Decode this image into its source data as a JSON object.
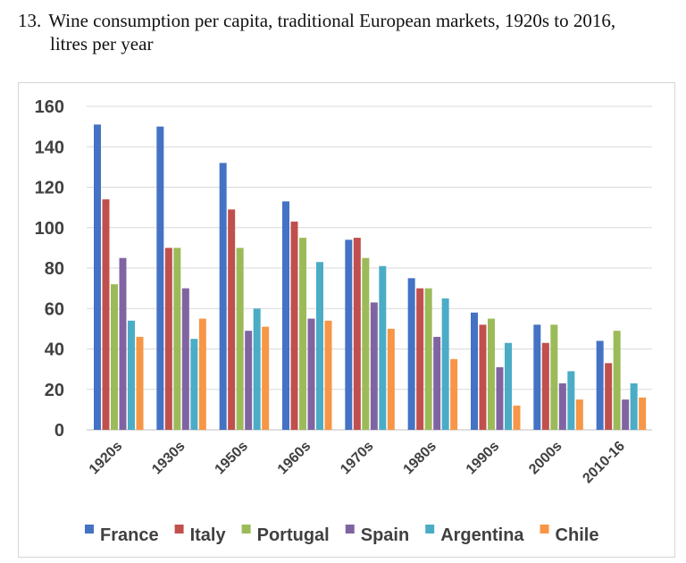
{
  "figure": {
    "number": "13.",
    "caption_line1": "Wine consumption per capita, traditional European markets, 1920s to 2016,",
    "caption_line2": "litres per year"
  },
  "chart_data": {
    "type": "bar",
    "title": "",
    "xlabel": "",
    "ylabel": "",
    "ylim": [
      0,
      160
    ],
    "yticks": [
      0,
      20,
      40,
      60,
      80,
      100,
      120,
      140,
      160
    ],
    "grid": true,
    "legend_position": "bottom",
    "categories": [
      "1920s",
      "1930s",
      "1950s",
      "1960s",
      "1970s",
      "1980s",
      "1990s",
      "2000s",
      "2010-16"
    ],
    "series": [
      {
        "name": "France",
        "color": "#4472C4",
        "values": [
          151,
          150,
          132,
          113,
          94,
          75,
          58,
          52,
          44
        ]
      },
      {
        "name": "Italy",
        "color": "#C0504D",
        "values": [
          114,
          90,
          109,
          103,
          95,
          70,
          52,
          43,
          33
        ]
      },
      {
        "name": "Portugal",
        "color": "#9BBB59",
        "values": [
          72,
          90,
          90,
          95,
          85,
          70,
          55,
          52,
          49
        ]
      },
      {
        "name": "Spain",
        "color": "#8064A2",
        "values": [
          85,
          70,
          49,
          55,
          63,
          46,
          31,
          23,
          15
        ]
      },
      {
        "name": "Argentina",
        "color": "#4BACC6",
        "values": [
          54,
          45,
          60,
          83,
          81,
          65,
          43,
          29,
          23
        ]
      },
      {
        "name": "Chile",
        "color": "#F79646",
        "values": [
          46,
          55,
          51,
          54,
          50,
          35,
          12,
          15,
          16
        ]
      }
    ]
  }
}
